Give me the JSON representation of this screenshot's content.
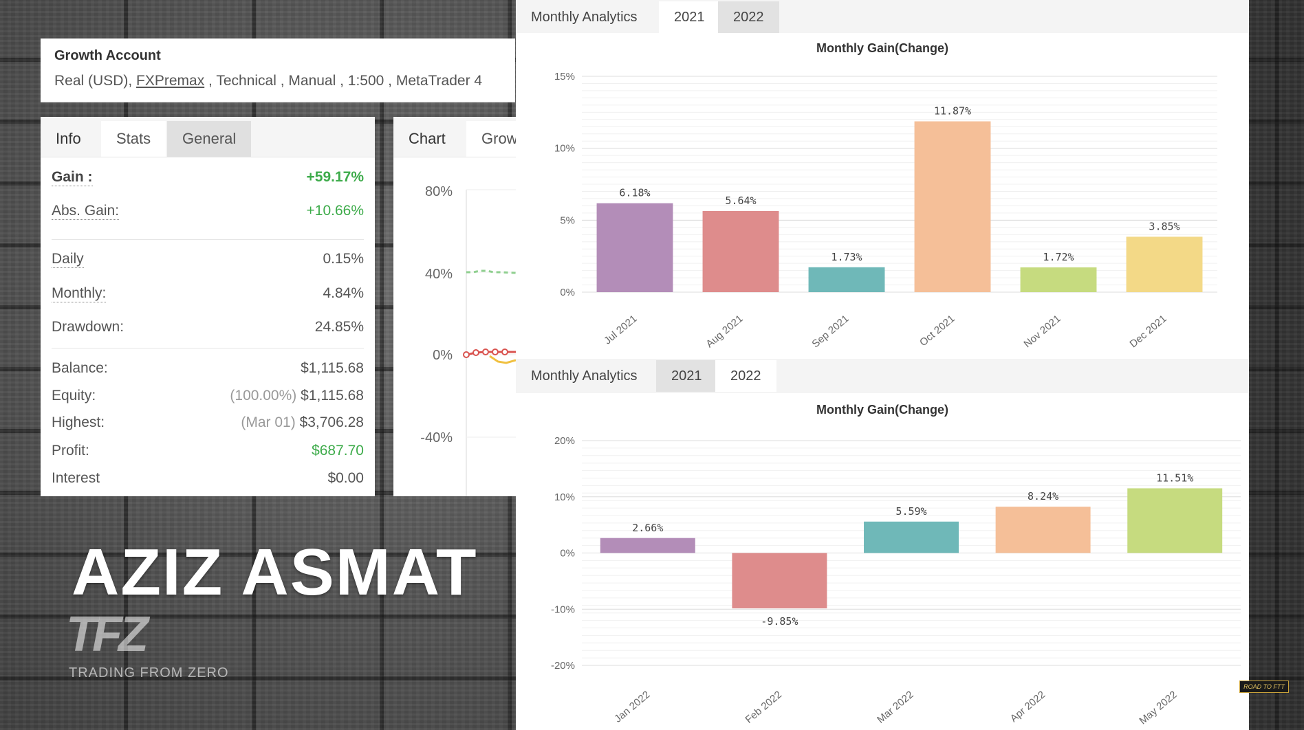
{
  "account": {
    "title": "Growth Account",
    "subtitle_prefix": "Real (USD), ",
    "broker": "FXPremax",
    "subtitle_suffix": " , Technical , Manual , 1:500 , MetaTrader 4"
  },
  "stats_tabs": [
    "Info",
    "Stats",
    "General"
  ],
  "stats": {
    "gain_label": "Gain :",
    "gain_value": "+59.17%",
    "abs_gain_label": "Abs. Gain:",
    "abs_gain_value": "+10.66%",
    "daily_label": "Daily",
    "daily_value": "0.15%",
    "monthly_label": "Monthly:",
    "monthly_value": "4.84%",
    "drawdown_label": "Drawdown:",
    "drawdown_value": "24.85%",
    "balance_label": "Balance:",
    "balance_value": "$1,115.68",
    "equity_label": "Equity:",
    "equity_pct": "(100.00%)",
    "equity_value": "$1,115.68",
    "highest_label": "Highest:",
    "highest_date": "(Mar 01)",
    "highest_value": "$3,706.28",
    "profit_label": "Profit:",
    "profit_value": "$687.70",
    "interest_label": "Interest",
    "interest_value": "$0.00"
  },
  "chart_tabs": [
    "Chart",
    "Grow"
  ],
  "growth_axis": [
    "80%",
    "40%",
    "0%",
    "-40%"
  ],
  "analytics_top": {
    "tabs": [
      "Monthly Analytics",
      "2021",
      "2022"
    ],
    "title": "Monthly Gain(Change)"
  },
  "analytics_bottom": {
    "tabs": [
      "Monthly Analytics",
      "2021",
      "2022"
    ],
    "title": "Monthly Gain(Change)"
  },
  "chart_data": [
    {
      "type": "bar",
      "title": "Monthly Gain(Change)",
      "categories": [
        "Jul 2021",
        "Aug 2021",
        "Sep 2021",
        "Oct 2021",
        "Nov 2021",
        "Dec 2021"
      ],
      "values": [
        6.18,
        5.64,
        1.73,
        11.87,
        1.72,
        3.85
      ],
      "labels": [
        "6.18%",
        "5.64%",
        "1.73%",
        "11.87%",
        "1.72%",
        "3.85%"
      ],
      "colors": [
        "#b38db8",
        "#de8c8c",
        "#6fb8b8",
        "#f5bf98",
        "#c6db7f",
        "#f3d987"
      ],
      "yticks": [
        "15%",
        "10%",
        "5%",
        "0%"
      ],
      "ylim": [
        0,
        15
      ],
      "grid": true
    },
    {
      "type": "bar",
      "title": "Monthly Gain(Change)",
      "categories": [
        "Jan 2022",
        "Feb 2022",
        "Mar 2022",
        "Apr 2022",
        "May 2022"
      ],
      "values": [
        2.66,
        -9.85,
        5.59,
        8.24,
        11.51
      ],
      "labels": [
        "2.66%",
        "-9.85%",
        "5.59%",
        "8.24%",
        "11.51%"
      ],
      "colors": [
        "#b38db8",
        "#de8c8c",
        "#6fb8b8",
        "#f5bf98",
        "#c6db7f"
      ],
      "yticks": [
        "20%",
        "10%",
        "0%",
        "-10%",
        "-20%"
      ],
      "ylim": [
        -20,
        20
      ],
      "grid": true
    }
  ],
  "brand": {
    "name": "AZIZ ASMAT",
    "logo_mark": "TFZ",
    "logo_text": "TRADING FROM ZERO",
    "badge": "ROAD TO FTT"
  }
}
